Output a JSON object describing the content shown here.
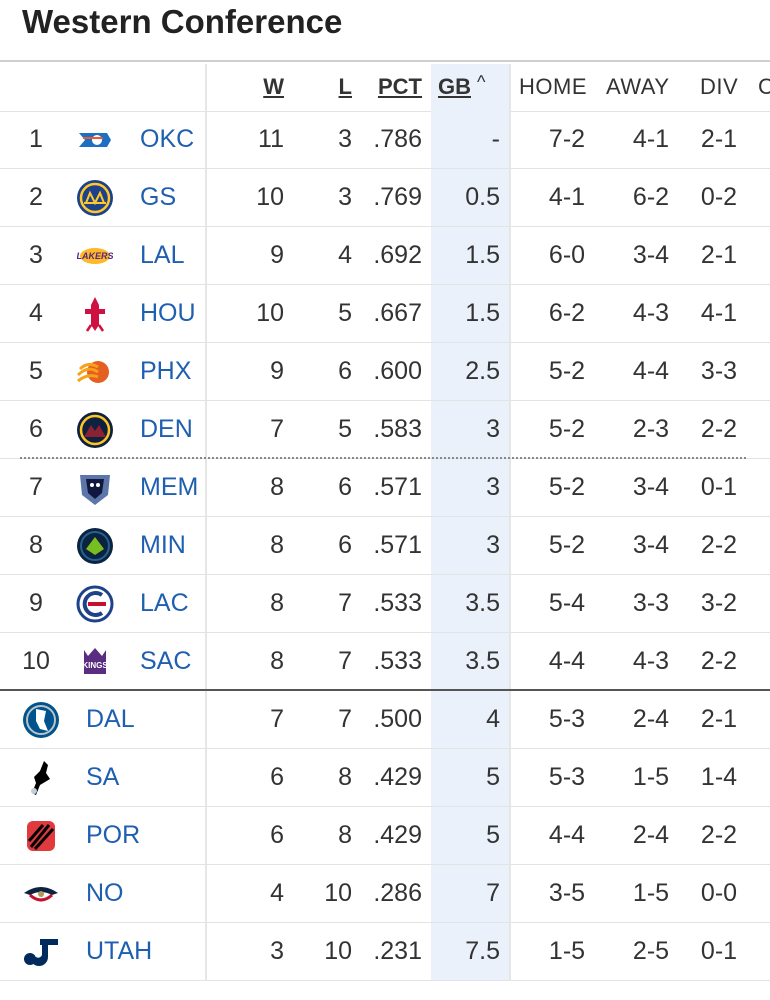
{
  "title": "Western Conference",
  "headers": {
    "w": "W",
    "l": "L",
    "pct": "PCT",
    "gb": "GB",
    "gb_sort": "^",
    "home": "HOME",
    "away": "AWAY",
    "div": "DIV",
    "conf_partial": "C"
  },
  "rows": [
    {
      "rank": "1",
      "team": "OKC",
      "w": "11",
      "l": "3",
      "pct": ".786",
      "gb": "-",
      "home": "7-2",
      "away": "4-1",
      "div": "2-1",
      "logo": "okc-logo"
    },
    {
      "rank": "2",
      "team": "GS",
      "w": "10",
      "l": "3",
      "pct": ".769",
      "gb": "0.5",
      "home": "4-1",
      "away": "6-2",
      "div": "0-2",
      "logo": "gs-logo"
    },
    {
      "rank": "3",
      "team": "LAL",
      "w": "9",
      "l": "4",
      "pct": ".692",
      "gb": "1.5",
      "home": "6-0",
      "away": "3-4",
      "div": "2-1",
      "logo": "lal-logo"
    },
    {
      "rank": "4",
      "team": "HOU",
      "w": "10",
      "l": "5",
      "pct": ".667",
      "gb": "1.5",
      "home": "6-2",
      "away": "4-3",
      "div": "4-1",
      "logo": "hou-logo"
    },
    {
      "rank": "5",
      "team": "PHX",
      "w": "9",
      "l": "6",
      "pct": ".600",
      "gb": "2.5",
      "home": "5-2",
      "away": "4-4",
      "div": "3-3",
      "logo": "phx-logo"
    },
    {
      "rank": "6",
      "team": "DEN",
      "w": "7",
      "l": "5",
      "pct": ".583",
      "gb": "3",
      "home": "5-2",
      "away": "2-3",
      "div": "2-2",
      "logo": "den-logo"
    },
    {
      "rank": "7",
      "team": "MEM",
      "w": "8",
      "l": "6",
      "pct": ".571",
      "gb": "3",
      "home": "5-2",
      "away": "3-4",
      "div": "0-1",
      "logo": "mem-logo"
    },
    {
      "rank": "8",
      "team": "MIN",
      "w": "8",
      "l": "6",
      "pct": ".571",
      "gb": "3",
      "home": "5-2",
      "away": "3-4",
      "div": "2-2",
      "logo": "min-logo"
    },
    {
      "rank": "9",
      "team": "LAC",
      "w": "8",
      "l": "7",
      "pct": ".533",
      "gb": "3.5",
      "home": "5-4",
      "away": "3-3",
      "div": "3-2",
      "logo": "lac-logo"
    },
    {
      "rank": "10",
      "team": "SAC",
      "w": "8",
      "l": "7",
      "pct": ".533",
      "gb": "3.5",
      "home": "4-4",
      "away": "4-3",
      "div": "2-2",
      "logo": "sac-logo"
    },
    {
      "rank": "",
      "team": "DAL",
      "w": "7",
      "l": "7",
      "pct": ".500",
      "gb": "4",
      "home": "5-3",
      "away": "2-4",
      "div": "2-1",
      "logo": "dal-logo"
    },
    {
      "rank": "",
      "team": "SA",
      "w": "6",
      "l": "8",
      "pct": ".429",
      "gb": "5",
      "home": "5-3",
      "away": "1-5",
      "div": "1-4",
      "logo": "sa-logo"
    },
    {
      "rank": "",
      "team": "POR",
      "w": "6",
      "l": "8",
      "pct": ".429",
      "gb": "5",
      "home": "4-4",
      "away": "2-4",
      "div": "2-2",
      "logo": "por-logo"
    },
    {
      "rank": "",
      "team": "NO",
      "w": "4",
      "l": "10",
      "pct": ".286",
      "gb": "7",
      "home": "3-5",
      "away": "1-5",
      "div": "0-0",
      "logo": "no-logo"
    },
    {
      "rank": "",
      "team": "UTAH",
      "w": "3",
      "l": "10",
      "pct": ".231",
      "gb": "7.5",
      "home": "1-5",
      "away": "2-5",
      "div": "0-1",
      "logo": "utah-logo"
    }
  ],
  "colors": {
    "team_link": "#1f5fb0",
    "gb_highlight": "#eaf1fb",
    "okc_blue": "#1d6fc4",
    "okc_orange": "#ef5a26",
    "gs_blue": "#1d428a",
    "gs_gold": "#ffc72c",
    "lal_purple": "#552583",
    "lal_gold": "#fdb927",
    "hou_red": "#ce1141",
    "phx_orange": "#e56020",
    "phx_purple": "#1d1160",
    "den_navy": "#0e2240",
    "den_gold": "#fec524",
    "mem_navy": "#5d76a9",
    "min_navy": "#0c2340",
    "min_green": "#78be20",
    "lac_navy": "#1d428a",
    "sac_purple": "#5a2d81",
    "dal_blue": "#00538c",
    "sa_black": "#000000",
    "por_red": "#e03a3e",
    "no_navy": "#0c2340",
    "utah_navy": "#002b5c"
  }
}
